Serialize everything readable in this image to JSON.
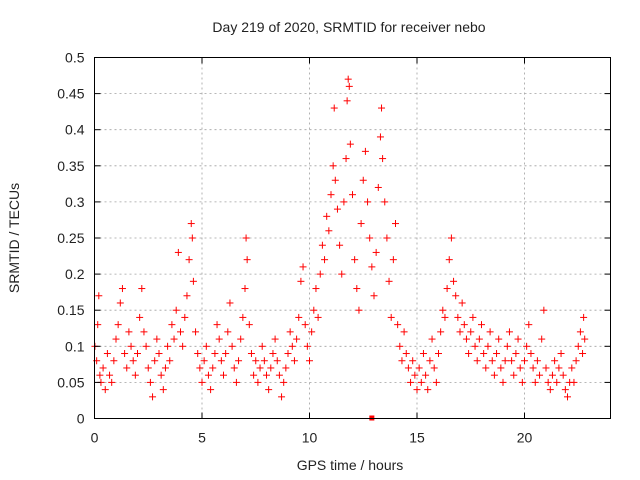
{
  "chart_data": {
    "type": "scatter",
    "title": "Day 219 of 2020, SRMTID for receiver nebo",
    "xlabel": "GPS time / hours",
    "ylabel": "SRMTID / TECUs",
    "xlim": [
      0,
      24
    ],
    "ylim": [
      0,
      0.5
    ],
    "xticks": [
      0,
      5,
      10,
      15,
      20
    ],
    "xtick_labels": [
      "0",
      "5",
      "10",
      "15",
      "20"
    ],
    "yticks": [
      0,
      0.05,
      0.1,
      0.15,
      0.2,
      0.25,
      0.3,
      0.35,
      0.4,
      0.45,
      0.5
    ],
    "ytick_labels": [
      "0",
      "0.05",
      "0.1",
      "0.15",
      "0.2",
      "0.25",
      "0.3",
      "0.35",
      "0.4",
      "0.45",
      "0.5"
    ],
    "grid": true,
    "marker": "+",
    "color": "#ff0000",
    "series": [
      {
        "name": "SRMTID",
        "points": [
          [
            0.02,
            0.1
          ],
          [
            0.1,
            0.08
          ],
          [
            0.15,
            0.13
          ],
          [
            0.2,
            0.17
          ],
          [
            0.25,
            0.06
          ],
          [
            0.3,
            0.05
          ],
          [
            0.4,
            0.07
          ],
          [
            0.5,
            0.04
          ],
          [
            0.6,
            0.09
          ],
          [
            0.7,
            0.06
          ],
          [
            0.8,
            0.05
          ],
          [
            0.9,
            0.08
          ],
          [
            1.0,
            0.11
          ],
          [
            1.1,
            0.13
          ],
          [
            1.2,
            0.16
          ],
          [
            1.3,
            0.18
          ],
          [
            1.4,
            0.09
          ],
          [
            1.5,
            0.07
          ],
          [
            1.6,
            0.12
          ],
          [
            1.7,
            0.1
          ],
          [
            1.8,
            0.08
          ],
          [
            1.9,
            0.06
          ],
          [
            2.0,
            0.09
          ],
          [
            2.1,
            0.14
          ],
          [
            2.2,
            0.18
          ],
          [
            2.3,
            0.12
          ],
          [
            2.4,
            0.1
          ],
          [
            2.5,
            0.07
          ],
          [
            2.6,
            0.05
          ],
          [
            2.7,
            0.03
          ],
          [
            2.8,
            0.08
          ],
          [
            2.9,
            0.11
          ],
          [
            3.0,
            0.09
          ],
          [
            3.1,
            0.06
          ],
          [
            3.2,
            0.04
          ],
          [
            3.3,
            0.07
          ],
          [
            3.4,
            0.1
          ],
          [
            3.5,
            0.08
          ],
          [
            3.6,
            0.13
          ],
          [
            3.7,
            0.11
          ],
          [
            3.8,
            0.15
          ],
          [
            3.9,
            0.23
          ],
          [
            4.0,
            0.12
          ],
          [
            4.1,
            0.1
          ],
          [
            4.2,
            0.14
          ],
          [
            4.3,
            0.17
          ],
          [
            4.4,
            0.22
          ],
          [
            4.5,
            0.27
          ],
          [
            4.55,
            0.25
          ],
          [
            4.6,
            0.19
          ],
          [
            4.7,
            0.12
          ],
          [
            4.8,
            0.09
          ],
          [
            4.9,
            0.07
          ],
          [
            5.0,
            0.05
          ],
          [
            5.1,
            0.08
          ],
          [
            5.2,
            0.1
          ],
          [
            5.3,
            0.06
          ],
          [
            5.4,
            0.04
          ],
          [
            5.5,
            0.07
          ],
          [
            5.6,
            0.09
          ],
          [
            5.7,
            0.13
          ],
          [
            5.8,
            0.11
          ],
          [
            5.9,
            0.08
          ],
          [
            6.0,
            0.06
          ],
          [
            6.1,
            0.09
          ],
          [
            6.2,
            0.12
          ],
          [
            6.3,
            0.16
          ],
          [
            6.4,
            0.1
          ],
          [
            6.5,
            0.07
          ],
          [
            6.6,
            0.05
          ],
          [
            6.7,
            0.08
          ],
          [
            6.8,
            0.11
          ],
          [
            6.9,
            0.14
          ],
          [
            7.0,
            0.18
          ],
          [
            7.05,
            0.25
          ],
          [
            7.1,
            0.22
          ],
          [
            7.2,
            0.13
          ],
          [
            7.3,
            0.09
          ],
          [
            7.4,
            0.06
          ],
          [
            7.5,
            0.08
          ],
          [
            7.6,
            0.05
          ],
          [
            7.7,
            0.07
          ],
          [
            7.8,
            0.1
          ],
          [
            7.9,
            0.08
          ],
          [
            8.0,
            0.06
          ],
          [
            8.1,
            0.04
          ],
          [
            8.2,
            0.07
          ],
          [
            8.3,
            0.09
          ],
          [
            8.4,
            0.11
          ],
          [
            8.5,
            0.08
          ],
          [
            8.6,
            0.06
          ],
          [
            8.7,
            0.03
          ],
          [
            8.8,
            0.05
          ],
          [
            8.9,
            0.07
          ],
          [
            9.0,
            0.09
          ],
          [
            9.1,
            0.12
          ],
          [
            9.2,
            0.1
          ],
          [
            9.3,
            0.08
          ],
          [
            9.4,
            0.11
          ],
          [
            9.5,
            0.14
          ],
          [
            9.6,
            0.19
          ],
          [
            9.7,
            0.21
          ],
          [
            9.8,
            0.13
          ],
          [
            9.9,
            0.1
          ],
          [
            10.0,
            0.08
          ],
          [
            10.1,
            0.12
          ],
          [
            10.2,
            0.15
          ],
          [
            10.3,
            0.18
          ],
          [
            10.4,
            0.14
          ],
          [
            10.5,
            0.2
          ],
          [
            10.6,
            0.24
          ],
          [
            10.7,
            0.22
          ],
          [
            10.8,
            0.28
          ],
          [
            10.9,
            0.26
          ],
          [
            11.0,
            0.31
          ],
          [
            11.1,
            0.35
          ],
          [
            11.15,
            0.43
          ],
          [
            11.2,
            0.33
          ],
          [
            11.3,
            0.29
          ],
          [
            11.4,
            0.24
          ],
          [
            11.5,
            0.2
          ],
          [
            11.6,
            0.3
          ],
          [
            11.7,
            0.36
          ],
          [
            11.75,
            0.44
          ],
          [
            11.8,
            0.47
          ],
          [
            11.85,
            0.46
          ],
          [
            11.9,
            0.38
          ],
          [
            12.0,
            0.31
          ],
          [
            12.1,
            0.22
          ],
          [
            12.2,
            0.18
          ],
          [
            12.3,
            0.15
          ],
          [
            12.4,
            0.27
          ],
          [
            12.5,
            0.33
          ],
          [
            12.6,
            0.37
          ],
          [
            12.7,
            0.3
          ],
          [
            12.8,
            0.25
          ],
          [
            12.9,
            0.21
          ],
          [
            13.0,
            0.17
          ],
          [
            13.1,
            0.23
          ],
          [
            13.2,
            0.32
          ],
          [
            13.3,
            0.39
          ],
          [
            13.35,
            0.43
          ],
          [
            13.4,
            0.36
          ],
          [
            13.5,
            0.3
          ],
          [
            13.6,
            0.25
          ],
          [
            13.7,
            0.19
          ],
          [
            13.8,
            0.14
          ],
          [
            13.9,
            0.22
          ],
          [
            14.0,
            0.27
          ],
          [
            14.1,
            0.13
          ],
          [
            14.2,
            0.1
          ],
          [
            14.3,
            0.08
          ],
          [
            14.4,
            0.12
          ],
          [
            14.5,
            0.09
          ],
          [
            14.6,
            0.07
          ],
          [
            14.7,
            0.05
          ],
          [
            14.8,
            0.08
          ],
          [
            14.9,
            0.06
          ],
          [
            15.0,
            0.04
          ],
          [
            15.1,
            0.07
          ],
          [
            15.2,
            0.05
          ],
          [
            15.3,
            0.09
          ],
          [
            15.4,
            0.06
          ],
          [
            15.5,
            0.04
          ],
          [
            15.6,
            0.08
          ],
          [
            15.7,
            0.11
          ],
          [
            15.8,
            0.07
          ],
          [
            15.9,
            0.05
          ],
          [
            16.0,
            0.09
          ],
          [
            16.1,
            0.12
          ],
          [
            16.2,
            0.15
          ],
          [
            16.3,
            0.14
          ],
          [
            16.4,
            0.18
          ],
          [
            16.5,
            0.22
          ],
          [
            16.6,
            0.25
          ],
          [
            16.7,
            0.19
          ],
          [
            16.8,
            0.17
          ],
          [
            16.9,
            0.14
          ],
          [
            17.0,
            0.12
          ],
          [
            17.1,
            0.16
          ],
          [
            17.2,
            0.13
          ],
          [
            17.3,
            0.11
          ],
          [
            17.4,
            0.09
          ],
          [
            17.5,
            0.12
          ],
          [
            17.6,
            0.14
          ],
          [
            17.7,
            0.1
          ],
          [
            17.8,
            0.08
          ],
          [
            17.9,
            0.11
          ],
          [
            18.0,
            0.13
          ],
          [
            18.1,
            0.09
          ],
          [
            18.2,
            0.07
          ],
          [
            18.3,
            0.1
          ],
          [
            18.4,
            0.12
          ],
          [
            18.5,
            0.08
          ],
          [
            18.6,
            0.06
          ],
          [
            18.7,
            0.09
          ],
          [
            18.8,
            0.11
          ],
          [
            18.9,
            0.07
          ],
          [
            19.0,
            0.05
          ],
          [
            19.1,
            0.08
          ],
          [
            19.2,
            0.1
          ],
          [
            19.3,
            0.12
          ],
          [
            19.4,
            0.08
          ],
          [
            19.5,
            0.06
          ],
          [
            19.6,
            0.09
          ],
          [
            19.7,
            0.11
          ],
          [
            19.8,
            0.07
          ],
          [
            19.9,
            0.05
          ],
          [
            20.0,
            0.08
          ],
          [
            20.1,
            0.1
          ],
          [
            20.2,
            0.13
          ],
          [
            20.3,
            0.09
          ],
          [
            20.4,
            0.07
          ],
          [
            20.5,
            0.05
          ],
          [
            20.6,
            0.08
          ],
          [
            20.7,
            0.06
          ],
          [
            20.8,
            0.11
          ],
          [
            20.9,
            0.15
          ],
          [
            21.0,
            0.07
          ],
          [
            21.1,
            0.05
          ],
          [
            21.2,
            0.04
          ],
          [
            21.3,
            0.06
          ],
          [
            21.4,
            0.08
          ],
          [
            21.5,
            0.05
          ],
          [
            21.6,
            0.07
          ],
          [
            21.7,
            0.09
          ],
          [
            21.8,
            0.06
          ],
          [
            21.9,
            0.04
          ],
          [
            22.0,
            0.03
          ],
          [
            22.1,
            0.05
          ],
          [
            22.2,
            0.07
          ],
          [
            22.3,
            0.05
          ],
          [
            22.4,
            0.08
          ],
          [
            22.5,
            0.1
          ],
          [
            22.6,
            0.12
          ],
          [
            22.7,
            0.09
          ],
          [
            22.75,
            0.14
          ],
          [
            22.8,
            0.11
          ]
        ]
      }
    ],
    "outlier_marker": [
      12.9,
      0.0
    ]
  }
}
